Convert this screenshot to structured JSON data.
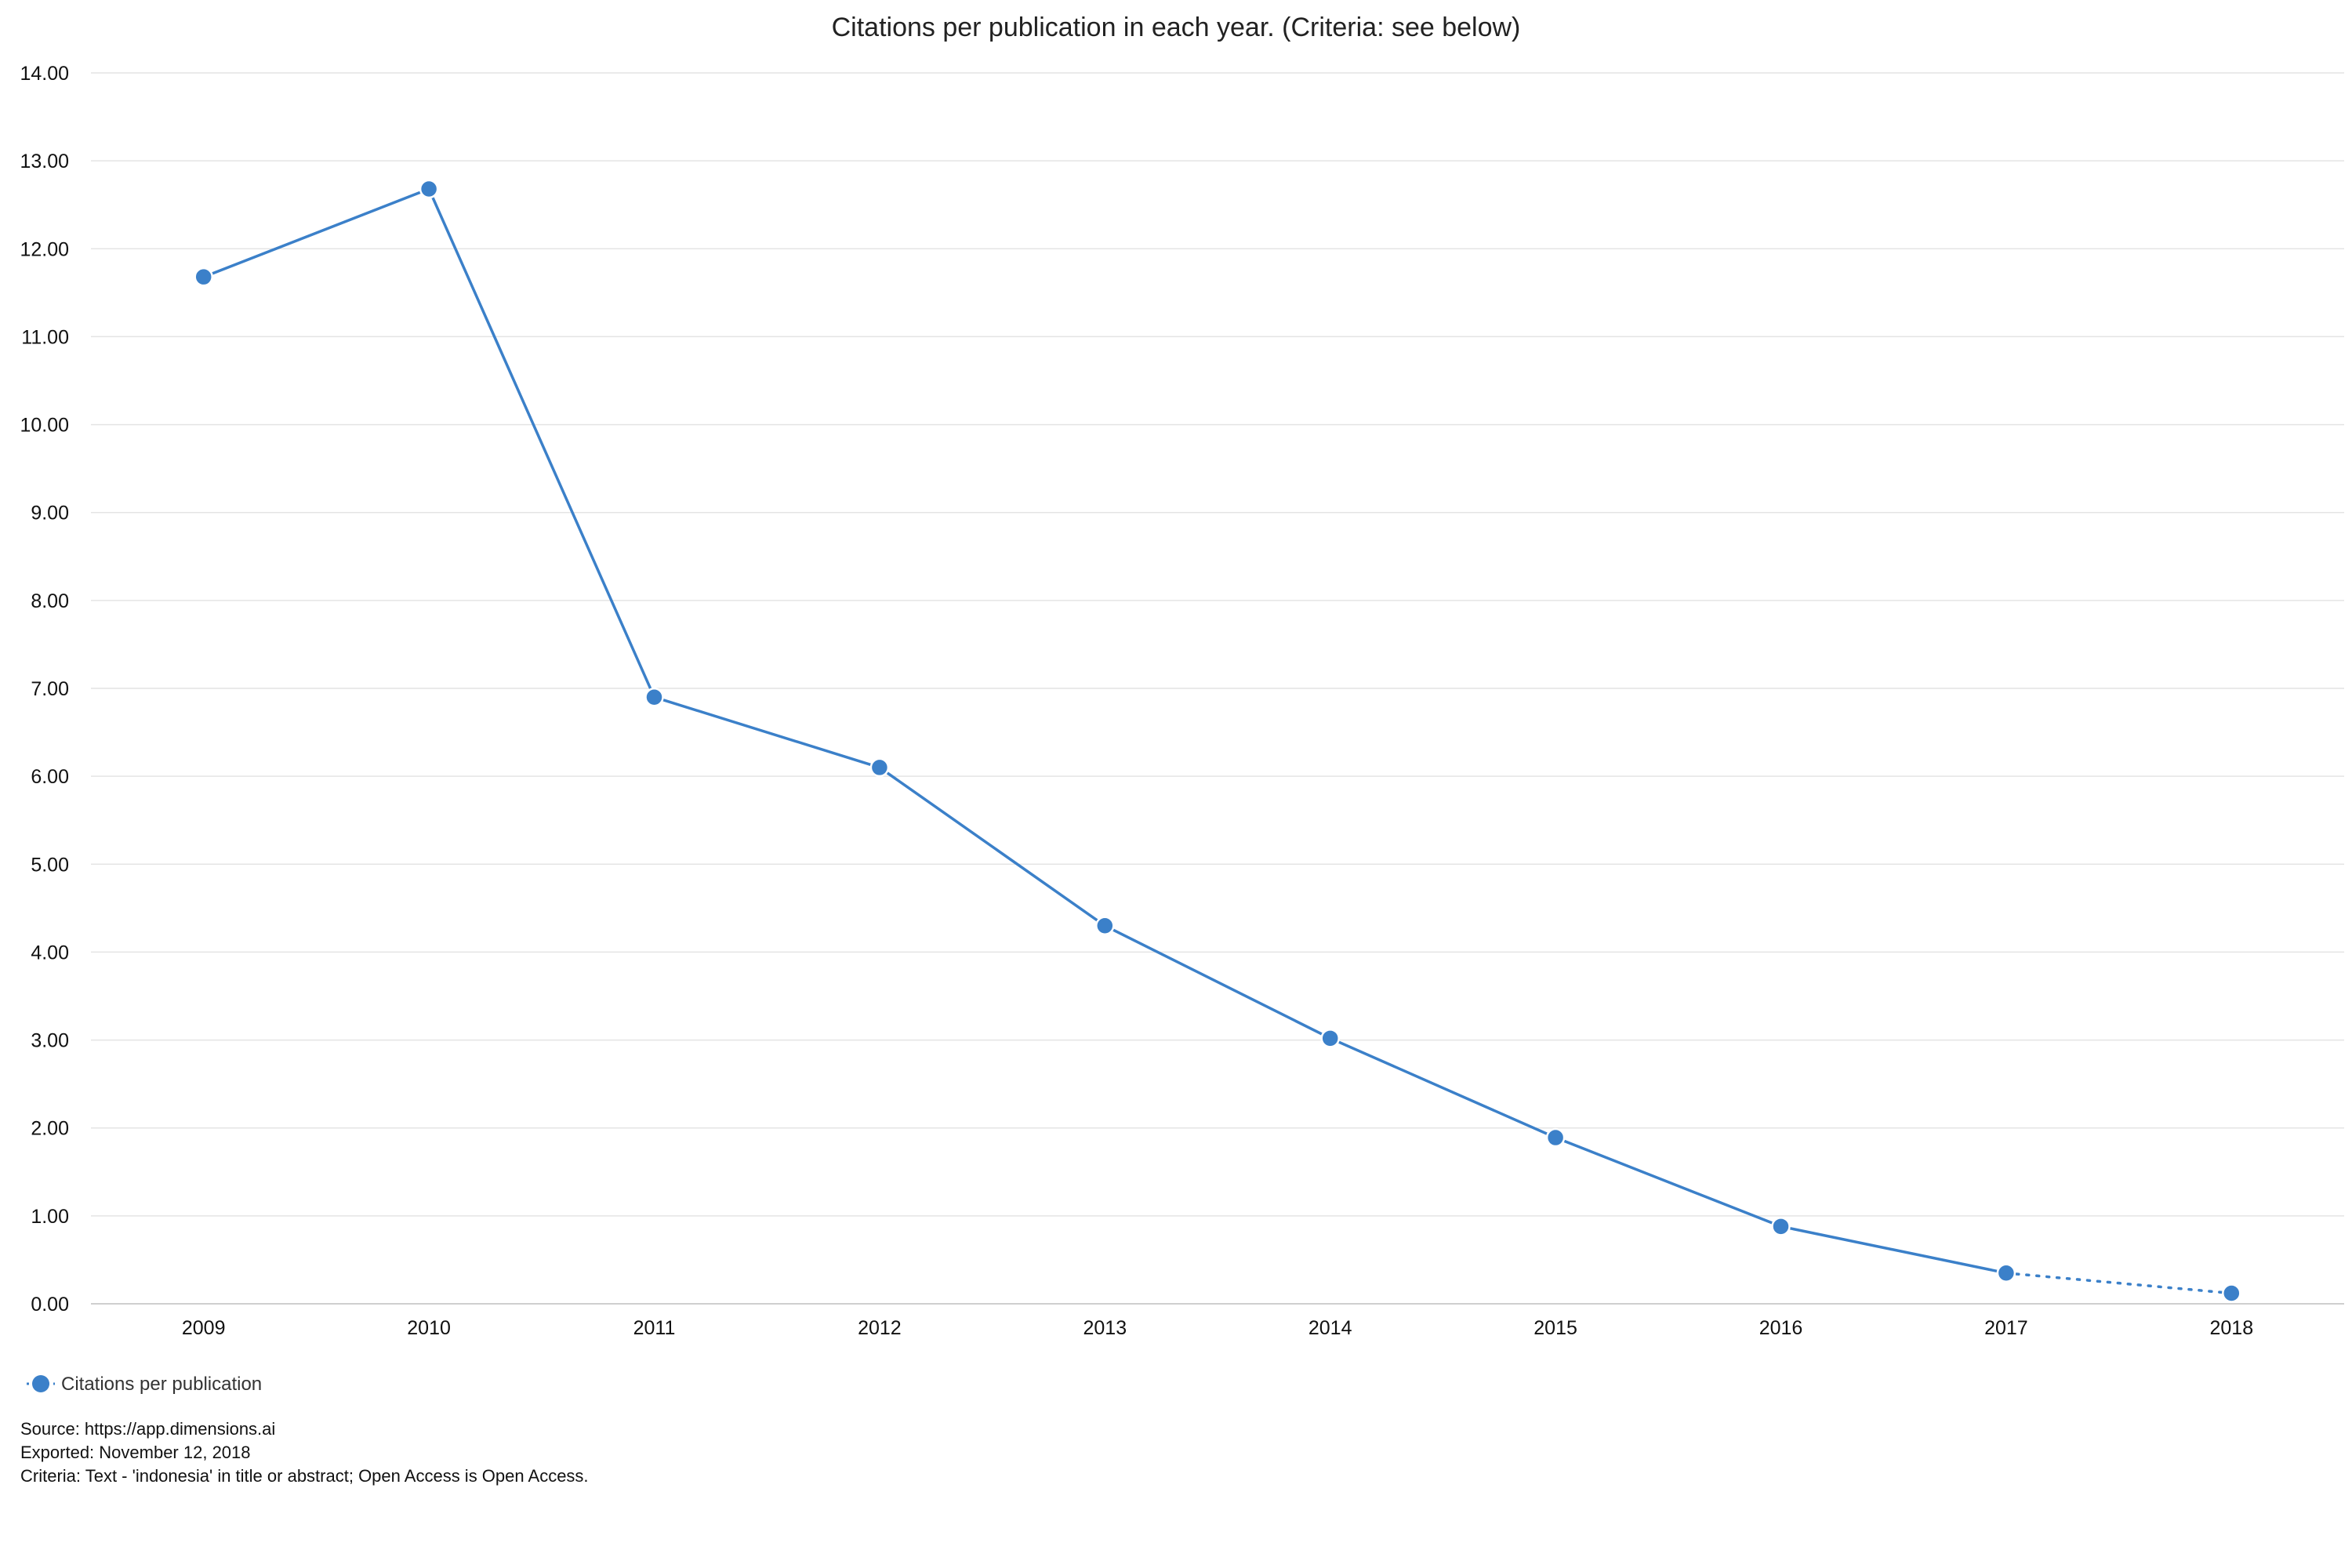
{
  "chart_data": {
    "type": "line",
    "title": "Citations per publication in each year. (Criteria: see below)",
    "x": [
      "2009",
      "2010",
      "2011",
      "2012",
      "2013",
      "2014",
      "2015",
      "2016",
      "2017",
      "2018"
    ],
    "series": [
      {
        "name": "Citations per publication",
        "values": [
          11.68,
          12.68,
          6.9,
          6.1,
          4.3,
          3.02,
          1.89,
          0.88,
          0.35,
          0.12
        ],
        "color": "#3b80c9",
        "dashed_from_index": 8
      }
    ],
    "ylim": [
      0,
      14
    ],
    "yticks": [
      "0.00",
      "1.00",
      "2.00",
      "3.00",
      "4.00",
      "5.00",
      "6.00",
      "7.00",
      "8.00",
      "9.00",
      "10.00",
      "11.00",
      "12.00",
      "13.00",
      "14.00"
    ],
    "xlabel": "",
    "ylabel": "",
    "grid": true,
    "legend_position": "bottom-left"
  },
  "footer": {
    "source": "Source: https://app.dimensions.ai",
    "exported": "Exported: November 12, 2018",
    "criteria": "Criteria: Text - 'indonesia' in title or abstract; Open Access is Open Access."
  },
  "colors": {
    "grid": "#e4e4e4",
    "axis": "#cfcfcf",
    "series": "#3b80c9"
  }
}
